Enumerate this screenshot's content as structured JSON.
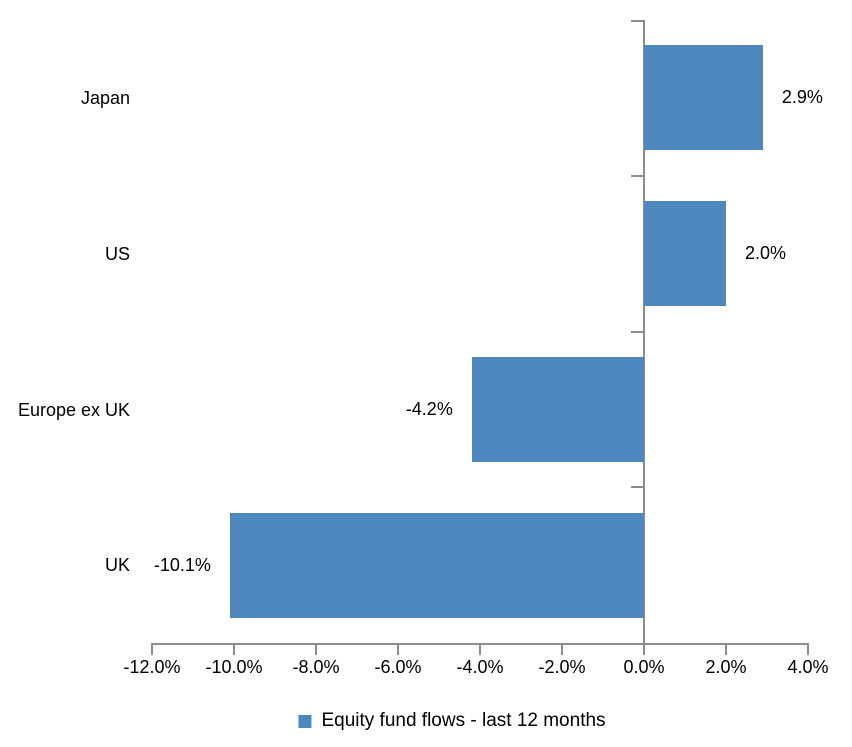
{
  "chart_data": {
    "type": "bar",
    "orientation": "horizontal",
    "title": "",
    "categories": [
      "Japan",
      "US",
      "Europe ex UK",
      "UK"
    ],
    "series": [
      {
        "name": "Equity fund flows - last 12 months",
        "values": [
          2.9,
          2.0,
          -4.2,
          -10.1
        ],
        "data_labels": [
          "2.9%",
          "2.0%",
          "-4.2%",
          "-10.1%"
        ]
      }
    ],
    "legend": "Equity fund flows - last 12 months",
    "legend_position": "bottom",
    "xlim": [
      -12,
      4
    ],
    "x_tick_values": [
      -12,
      -10,
      -8,
      -6,
      -4,
      -2,
      0,
      2,
      4
    ],
    "x_tick_labels": [
      "-12.0%",
      "-10.0%",
      "-8.0%",
      "-6.0%",
      "-4.0%",
      "-2.0%",
      "0.0%",
      "2.0%",
      "4.0%"
    ],
    "grid": false,
    "value_axis_visible_labels": false,
    "colors": {
      "bar": "#4E87BE",
      "axis": "#8C8C8C",
      "text": "#000000",
      "background": "#FFFFFF"
    }
  }
}
